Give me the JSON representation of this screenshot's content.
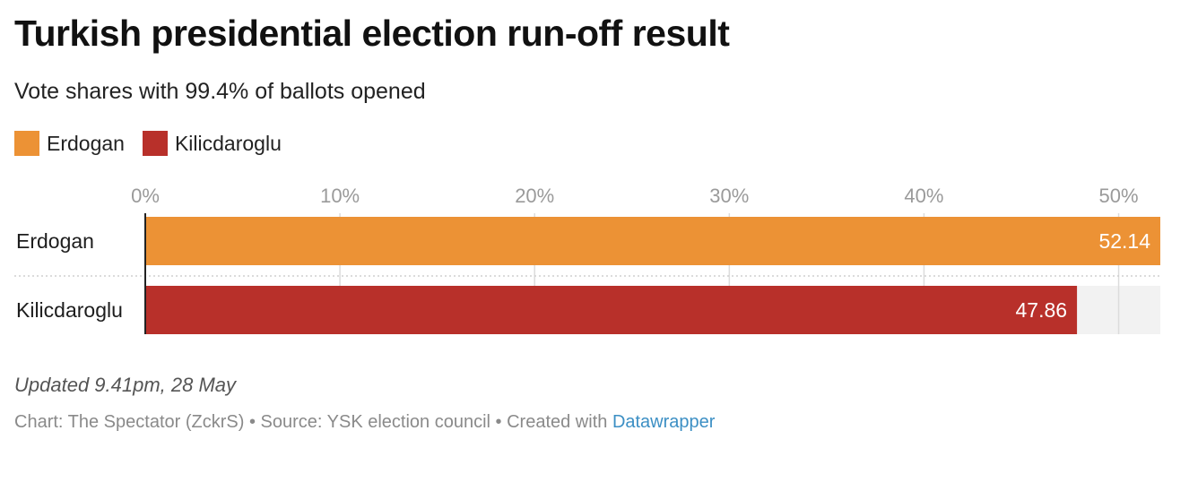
{
  "title": "Turkish presidential election run-off result",
  "subtitle": "Vote shares with 99.4% of ballots opened",
  "note": "Updated 9.41pm, 28 May",
  "footer": {
    "chart_credit": "Chart: The Spectator (ZckrS)",
    "separator": " • ",
    "source": "Source: YSK election council",
    "created_with": "Created with ",
    "tool": "Datawrapper"
  },
  "colors": {
    "erdogan": "#ec9235",
    "kilicdaroglu": "#b8302a",
    "track": "#f2f2f2",
    "tick_label": "#9a9a9a",
    "grid": "#dcdcdc",
    "link": "#3c8fc4"
  },
  "legend": [
    {
      "label": "Erdogan",
      "color": "#ec9235"
    },
    {
      "label": "Kilicdaroglu",
      "color": "#b8302a"
    }
  ],
  "chart_data": {
    "type": "bar",
    "orientation": "horizontal",
    "categories": [
      "Erdogan",
      "Kilicdaroglu"
    ],
    "values": [
      52.14,
      47.86
    ],
    "value_labels": [
      "52.14",
      "47.86"
    ],
    "xlim": [
      0,
      52.14
    ],
    "ticks": [
      0,
      10,
      20,
      30,
      40,
      50
    ],
    "tick_labels": [
      "0%",
      "10%",
      "20%",
      "30%",
      "40%",
      "50%"
    ],
    "grid": true,
    "legend_position": "top-left"
  }
}
